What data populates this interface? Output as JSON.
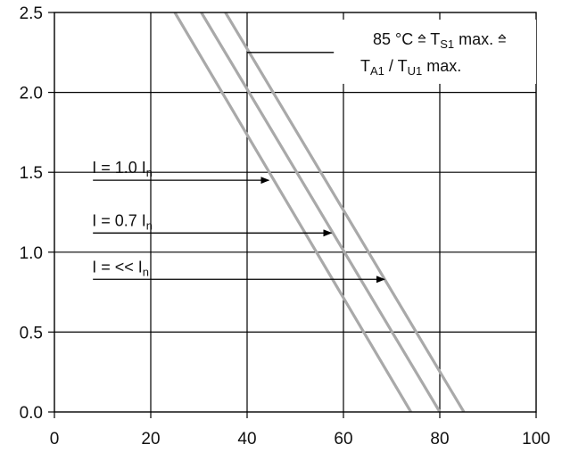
{
  "chart_data": {
    "type": "line",
    "title": "",
    "xlabel": "",
    "ylabel": "",
    "xlim": [
      0,
      100
    ],
    "ylim": [
      0,
      2.5
    ],
    "x_ticks": [
      0,
      20,
      40,
      60,
      80,
      100
    ],
    "x_tick_labels": [
      "0",
      "20",
      "40",
      "60",
      "80",
      "100"
    ],
    "y_ticks": [
      0.0,
      0.5,
      1.0,
      1.5,
      2.0,
      2.5
    ],
    "y_tick_labels": [
      "0.0",
      "0.5",
      "1.0",
      "1.5",
      "2.0",
      "2.5"
    ],
    "grid": true,
    "series": [
      {
        "points": [
          [
            25,
            2.5
          ],
          [
            74,
            0.0
          ]
        ],
        "color": "#a9a9a9"
      },
      {
        "points": [
          [
            30.5,
            2.5
          ],
          [
            80,
            0.0
          ]
        ],
        "color": "#a9a9a9"
      },
      {
        "points": [
          [
            35.5,
            2.5
          ],
          [
            85,
            0.0
          ]
        ],
        "color": "#a9a9a9"
      }
    ],
    "annotations": [
      {
        "id": "i10",
        "text": "I = 1.0 I",
        "sub": "n",
        "arrow_from": [
          8,
          1.45
        ],
        "arrow_to": [
          44.5,
          1.45
        ]
      },
      {
        "id": "i07",
        "text": "I = 0.7 I",
        "sub": "n",
        "arrow_from": [
          8,
          1.12
        ],
        "arrow_to": [
          57.5,
          1.12
        ]
      },
      {
        "id": "ill",
        "text": "I = << I",
        "sub": "n",
        "arrow_from": [
          8,
          0.83
        ],
        "arrow_to": [
          68.5,
          0.83
        ]
      }
    ],
    "limit_note": {
      "line1_prefix": "85 °C ",
      "hat_symbol": "=",
      "line1_t": " T",
      "line1_t_sub": "S1",
      "line1_suffix": " max. ",
      "line2_t": "T",
      "line2_t_sub": "A1",
      "line2_sep": " / T",
      "line2_t_sub2": "U1",
      "line2_suffix": " max.",
      "pointer_from": [
        58,
        2.25
      ],
      "pointer_to": [
        40,
        2.25
      ]
    }
  }
}
